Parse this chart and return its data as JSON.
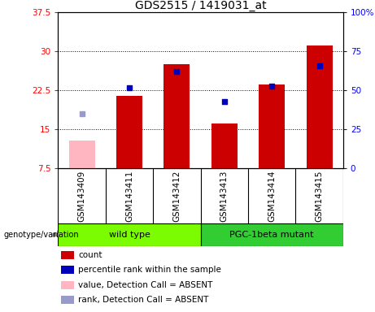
{
  "title": "GDS2515 / 1419031_at",
  "samples": [
    "GSM143409",
    "GSM143411",
    "GSM143412",
    "GSM143413",
    "GSM143414",
    "GSM143415"
  ],
  "count_values": [
    null,
    21.5,
    27.5,
    16.2,
    23.7,
    31.1
  ],
  "count_absent": [
    12.8,
    null,
    null,
    null,
    null,
    null
  ],
  "percentile_values": [
    null,
    52,
    62,
    43,
    53,
    66
  ],
  "percentile_absent": [
    35,
    null,
    null,
    null,
    null,
    null
  ],
  "ylim_left": [
    7.5,
    37.5
  ],
  "ylim_right": [
    0,
    100
  ],
  "left_ticks": [
    7.5,
    15.0,
    22.5,
    30.0,
    37.5
  ],
  "right_ticks": [
    0,
    25,
    50,
    75,
    100
  ],
  "right_tick_labels": [
    "0",
    "25",
    "50",
    "75",
    "100%"
  ],
  "group_labels": [
    "wild type",
    "PGC-1beta mutant"
  ],
  "group_ranges": [
    [
      0,
      3
    ],
    [
      3,
      6
    ]
  ],
  "group_color_wt": "#7CFC00",
  "group_color_pgc": "#32CD32",
  "bar_color": "#CC0000",
  "bar_absent_color": "#FFB6C1",
  "dot_color": "#0000BB",
  "dot_absent_color": "#9999CC",
  "bar_width": 0.55,
  "dot_size": 25,
  "sample_bg": "#C8C8C8",
  "legend_items": [
    {
      "color": "#CC0000",
      "label": "count"
    },
    {
      "color": "#0000BB",
      "label": "percentile rank within the sample"
    },
    {
      "color": "#FFB6C1",
      "label": "value, Detection Call = ABSENT"
    },
    {
      "color": "#9999CC",
      "label": "rank, Detection Call = ABSENT"
    }
  ]
}
